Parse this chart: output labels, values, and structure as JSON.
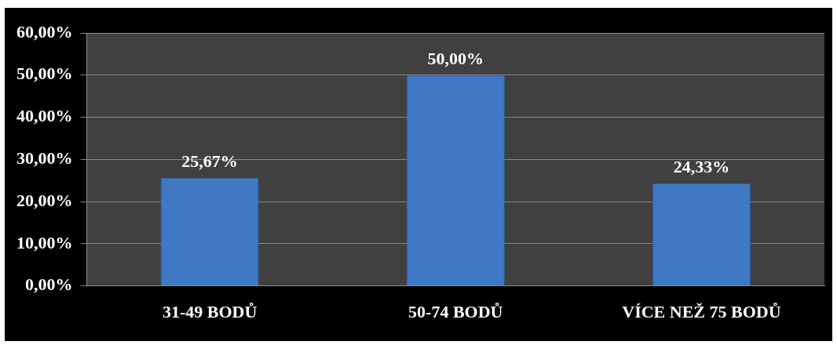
{
  "chart_data": {
    "type": "bar",
    "categories": [
      "31-49 BODŮ",
      "50-74 BODŮ",
      "VÍCE NEŽ 75 BODŮ"
    ],
    "values": [
      25.67,
      50,
      24.33
    ],
    "color": "#3f78c4",
    "value_labels": [
      "25,67%",
      "50,00%",
      "24,33%"
    ],
    "ylim": [
      0,
      60
    ],
    "yticks": [
      {
        "value": 0,
        "label": "0,00%"
      },
      {
        "value": 10,
        "label": "10,00%"
      },
      {
        "value": 20,
        "label": "20,00%"
      },
      {
        "value": 30,
        "label": "30,00%"
      },
      {
        "value": 40,
        "label": "40,00%"
      },
      {
        "value": 50,
        "label": "50,00%"
      },
      {
        "value": 60,
        "label": "60,00%"
      }
    ],
    "grid": "y",
    "legend": false
  }
}
